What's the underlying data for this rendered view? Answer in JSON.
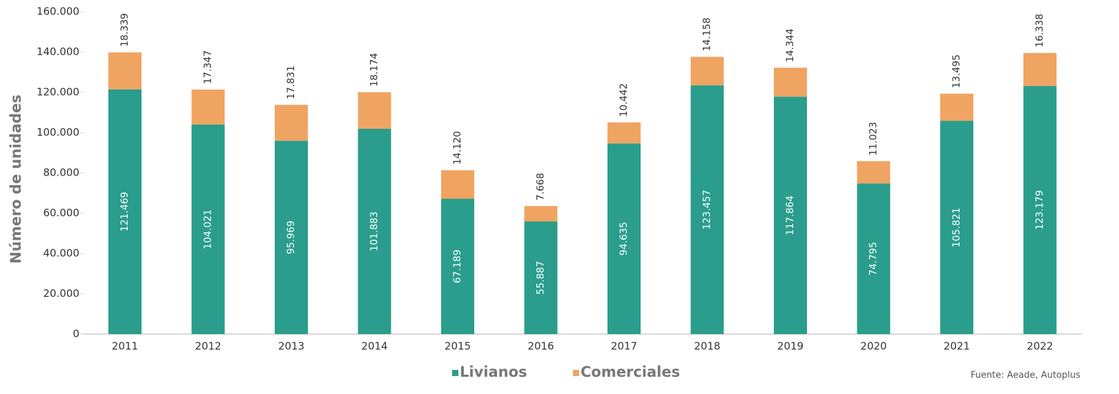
{
  "chart_data": {
    "type": "stacked_bar",
    "y_axis_label": "Número de unidades",
    "source": "Fuente: Aeade, Autoplus",
    "categories": [
      "2011",
      "2012",
      "2013",
      "2014",
      "2015",
      "2016",
      "2017",
      "2018",
      "2019",
      "2020",
      "2021",
      "2022"
    ],
    "series": [
      {
        "name": "Livianos",
        "color": "#2a9d8c",
        "values": [
          121469,
          104021,
          95969,
          101883,
          67189,
          55887,
          94635,
          123457,
          117864,
          74795,
          105821,
          123179
        ],
        "value_labels": [
          "121.469",
          "104.021",
          "95.969",
          "101.883",
          "67.189",
          "55.887",
          "94.635",
          "123.457",
          "117.864",
          "74.795",
          "105.821",
          "123.179"
        ]
      },
      {
        "name": "Comerciales",
        "color": "#f0a462",
        "values": [
          18339,
          17347,
          17831,
          18174,
          14120,
          7668,
          10442,
          14158,
          14344,
          11023,
          13495,
          16338
        ],
        "value_labels": [
          "18.339",
          "17.347",
          "17.831",
          "18.174",
          "14.120",
          "7.668",
          "10.442",
          "14.158",
          "14.344",
          "11.023",
          "13.495",
          "16.338"
        ]
      }
    ],
    "ylim": [
      0,
      160000
    ],
    "yticks": [
      0,
      {
        "value": 20000,
        "label": "20.000"
      },
      {
        "value": 40000,
        "label": "40.000"
      },
      {
        "value": 60000,
        "label": "60.000"
      },
      {
        "value": 80000,
        "label": "80.000"
      },
      {
        "value": 100000,
        "label": "100.000"
      },
      {
        "value": 120000,
        "label": "120.000"
      },
      {
        "value": 140000,
        "label": "140.000"
      },
      {
        "value": 160000,
        "label": "160.000"
      }
    ],
    "grid": false
  }
}
